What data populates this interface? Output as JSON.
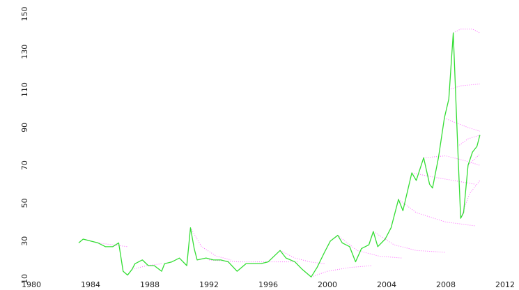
{
  "chart_data": {
    "type": "line",
    "xlim": [
      1980,
      2012
    ],
    "ylim": [
      10,
      150
    ],
    "xticks": [
      1980,
      1984,
      1988,
      1992,
      1996,
      2000,
      2004,
      2008,
      2012
    ],
    "yticks": [
      10,
      30,
      50,
      70,
      90,
      110,
      130,
      150
    ],
    "grid": false,
    "series": [
      {
        "color": "#ff66ff",
        "linestyle": "dotted",
        "x": [
          1983.5,
          1984.5,
          1985.5,
          1986.5
        ],
        "values": [
          31,
          29,
          28,
          27
        ]
      },
      {
        "color": "#ff66ff",
        "linestyle": "dotted",
        "x": [
          1986.8,
          1987.8,
          1988.8
        ],
        "values": [
          15,
          17,
          18
        ]
      },
      {
        "color": "#ff66ff",
        "linestyle": "dotted",
        "x": [
          1990.75,
          1991.5,
          1992.5,
          1993.5
        ],
        "values": [
          37,
          27,
          22,
          20
        ]
      },
      {
        "color": "#ff66ff",
        "linestyle": "dotted",
        "x": [
          1992,
          1994,
          1996,
          1998
        ],
        "values": [
          20,
          19,
          19,
          19
        ]
      },
      {
        "color": "#ff66ff",
        "linestyle": "dotted",
        "x": [
          1996.8,
          1997.8,
          1998.8,
          1999.8
        ],
        "values": [
          25,
          21,
          19,
          18
        ]
      },
      {
        "color": "#ff66ff",
        "linestyle": "dotted",
        "x": [
          1998.9,
          2000,
          2001.5,
          2003
        ],
        "values": [
          11,
          14,
          16,
          17
        ]
      },
      {
        "color": "#ff66ff",
        "linestyle": "dotted",
        "x": [
          2000.7,
          2002,
          2003.5,
          2005
        ],
        "values": [
          33,
          25,
          22,
          21
        ]
      },
      {
        "color": "#ff66ff",
        "linestyle": "dotted",
        "x": [
          2003.1,
          2004.5,
          2006,
          2008
        ],
        "values": [
          35,
          28,
          25,
          24
        ]
      },
      {
        "color": "#ff66ff",
        "linestyle": "dotted",
        "x": [
          2004.8,
          2006,
          2008,
          2010
        ],
        "values": [
          52,
          45,
          40,
          38
        ]
      },
      {
        "color": "#ff66ff",
        "linestyle": "dotted",
        "x": [
          2005.7,
          2007,
          2008.5,
          2010
        ],
        "values": [
          66,
          64,
          62,
          60
        ]
      },
      {
        "color": "#ff66ff",
        "linestyle": "dotted",
        "x": [
          2006.5,
          2008,
          2009.5,
          2010.3
        ],
        "values": [
          74,
          75,
          72,
          70
        ]
      },
      {
        "color": "#ff66ff",
        "linestyle": "dotted",
        "x": [
          2007.9,
          2008.5,
          2009.5,
          2010.3
        ],
        "values": [
          95,
          93,
          90,
          88
        ]
      },
      {
        "color": "#ff66ff",
        "linestyle": "dotted",
        "x": [
          2008.2,
          2009,
          2010.3
        ],
        "values": [
          110,
          112,
          113
        ]
      },
      {
        "color": "#ff66ff",
        "linestyle": "dotted",
        "x": [
          2008.5,
          2009,
          2009.8,
          2010.3
        ],
        "values": [
          140,
          142,
          142,
          140
        ]
      },
      {
        "color": "#ff66ff",
        "linestyle": "dotted",
        "x": [
          2008.8,
          2009.5,
          2010.3
        ],
        "values": [
          80,
          84,
          86
        ]
      },
      {
        "color": "#ff66ff",
        "linestyle": "dotted",
        "x": [
          2009,
          2009.6,
          2010.3
        ],
        "values": [
          42,
          55,
          62
        ]
      },
      {
        "color": "#ff66ff",
        "linestyle": "dotted",
        "x": [
          2009.5,
          2010.3
        ],
        "values": [
          70,
          76
        ]
      },
      {
        "color": "#33dd33",
        "linestyle": "solid",
        "x": [
          1983.2,
          1983.5,
          1984,
          1984.5,
          1985,
          1985.5,
          1985.9,
          1986.2,
          1986.5,
          1986.8,
          1987,
          1987.5,
          1987.9,
          1988.3,
          1988.8,
          1989,
          1989.5,
          1990,
          1990.5,
          1990.75,
          1991,
          1991.2,
          1991.8,
          1992.3,
          1992.8,
          1993.3,
          1993.9,
          1994.5,
          1995,
          1995.5,
          1996,
          1996.8,
          1997.2,
          1997.8,
          1998.3,
          1998.9,
          1999.3,
          1999.8,
          2000.2,
          2000.7,
          2001,
          2001.5,
          2001.9,
          2002.3,
          2002.8,
          2003.1,
          2003.4,
          2003.9,
          2004.3,
          2004.8,
          2005.1,
          2005.7,
          2006,
          2006.5,
          2006.9,
          2007.1,
          2007.5,
          2007.9,
          2008.2,
          2008.5,
          2008.8,
          2009,
          2009.2,
          2009.5,
          2009.8,
          2010.1,
          2010.3
        ],
        "values": [
          29,
          31,
          30,
          29,
          27,
          27,
          29,
          14,
          12,
          15,
          18,
          20,
          17,
          17,
          14,
          18,
          19,
          21,
          17,
          37,
          26,
          20,
          21,
          20,
          20,
          19,
          14,
          18,
          18,
          18,
          19,
          25,
          21,
          19,
          15,
          11,
          16,
          24,
          30,
          33,
          29,
          27,
          19,
          26,
          28,
          35,
          27,
          31,
          37,
          52,
          46,
          66,
          62,
          74,
          60,
          58,
          74,
          95,
          105,
          140,
          80,
          42,
          45,
          70,
          77,
          80,
          86
        ]
      }
    ]
  }
}
